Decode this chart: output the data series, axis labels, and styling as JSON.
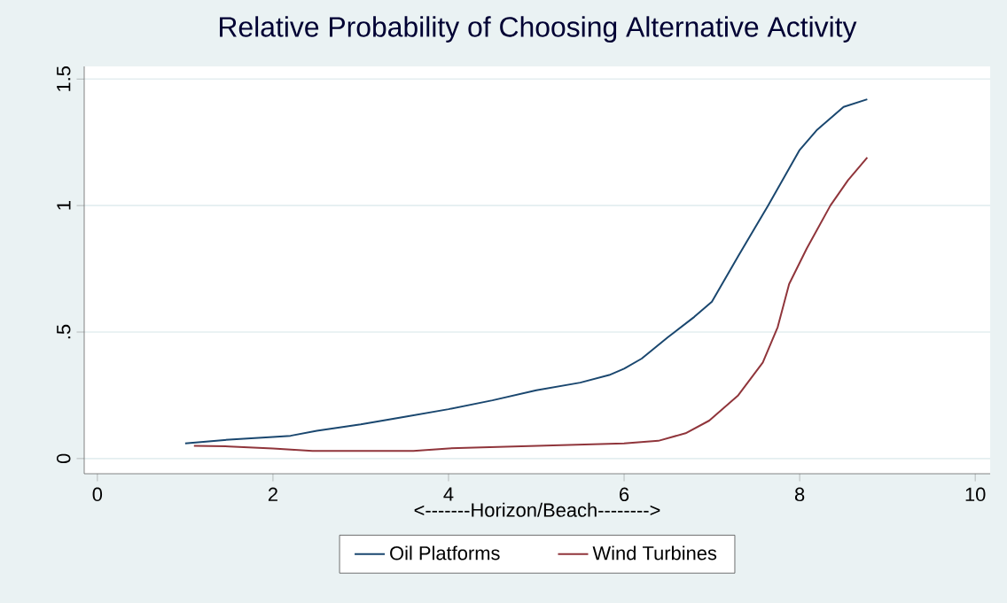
{
  "chart_data": {
    "type": "line",
    "title": "Relative Probability of Choosing Alternative Activity",
    "xlabel": "<-------Horizon/Beach-------->",
    "xlim": [
      -0.15,
      10.17
    ],
    "ylim": [
      -0.06,
      1.55
    ],
    "xticks": [
      0,
      2,
      4,
      6,
      8,
      10
    ],
    "yticks": [
      0,
      {
        "value": 0.5,
        "label": ".5"
      },
      1,
      1.5
    ],
    "grid": "y",
    "legend": "bottom",
    "line_style": "solid",
    "series": [
      {
        "name": "Oil Platforms",
        "color": "#1a476f",
        "x": [
          1.0,
          1.5,
          2.0,
          2.2,
          2.5,
          3.0,
          3.5,
          4.0,
          4.5,
          5.0,
          5.5,
          5.83,
          6.0,
          6.2,
          6.5,
          6.8,
          7.0,
          7.3,
          7.64,
          8.0,
          8.2,
          8.5,
          8.77
        ],
        "values": [
          0.06,
          0.075,
          0.085,
          0.09,
          0.11,
          0.135,
          0.165,
          0.195,
          0.23,
          0.27,
          0.3,
          0.33,
          0.355,
          0.395,
          0.48,
          0.56,
          0.62,
          0.8,
          1.0,
          1.22,
          1.3,
          1.39,
          1.42
        ]
      },
      {
        "name": "Wind Turbines",
        "color": "#90353b",
        "x": [
          1.1,
          1.5,
          2.0,
          2.45,
          3.0,
          3.6,
          4.0,
          5.0,
          6.0,
          6.39,
          6.7,
          6.97,
          7.3,
          7.58,
          7.75,
          7.88,
          8.08,
          8.35,
          8.55,
          8.77
        ],
        "values": [
          0.05,
          0.048,
          0.04,
          0.03,
          0.03,
          0.03,
          0.04,
          0.05,
          0.06,
          0.07,
          0.1,
          0.15,
          0.25,
          0.38,
          0.52,
          0.69,
          0.83,
          1.0,
          1.1,
          1.19
        ]
      }
    ]
  }
}
